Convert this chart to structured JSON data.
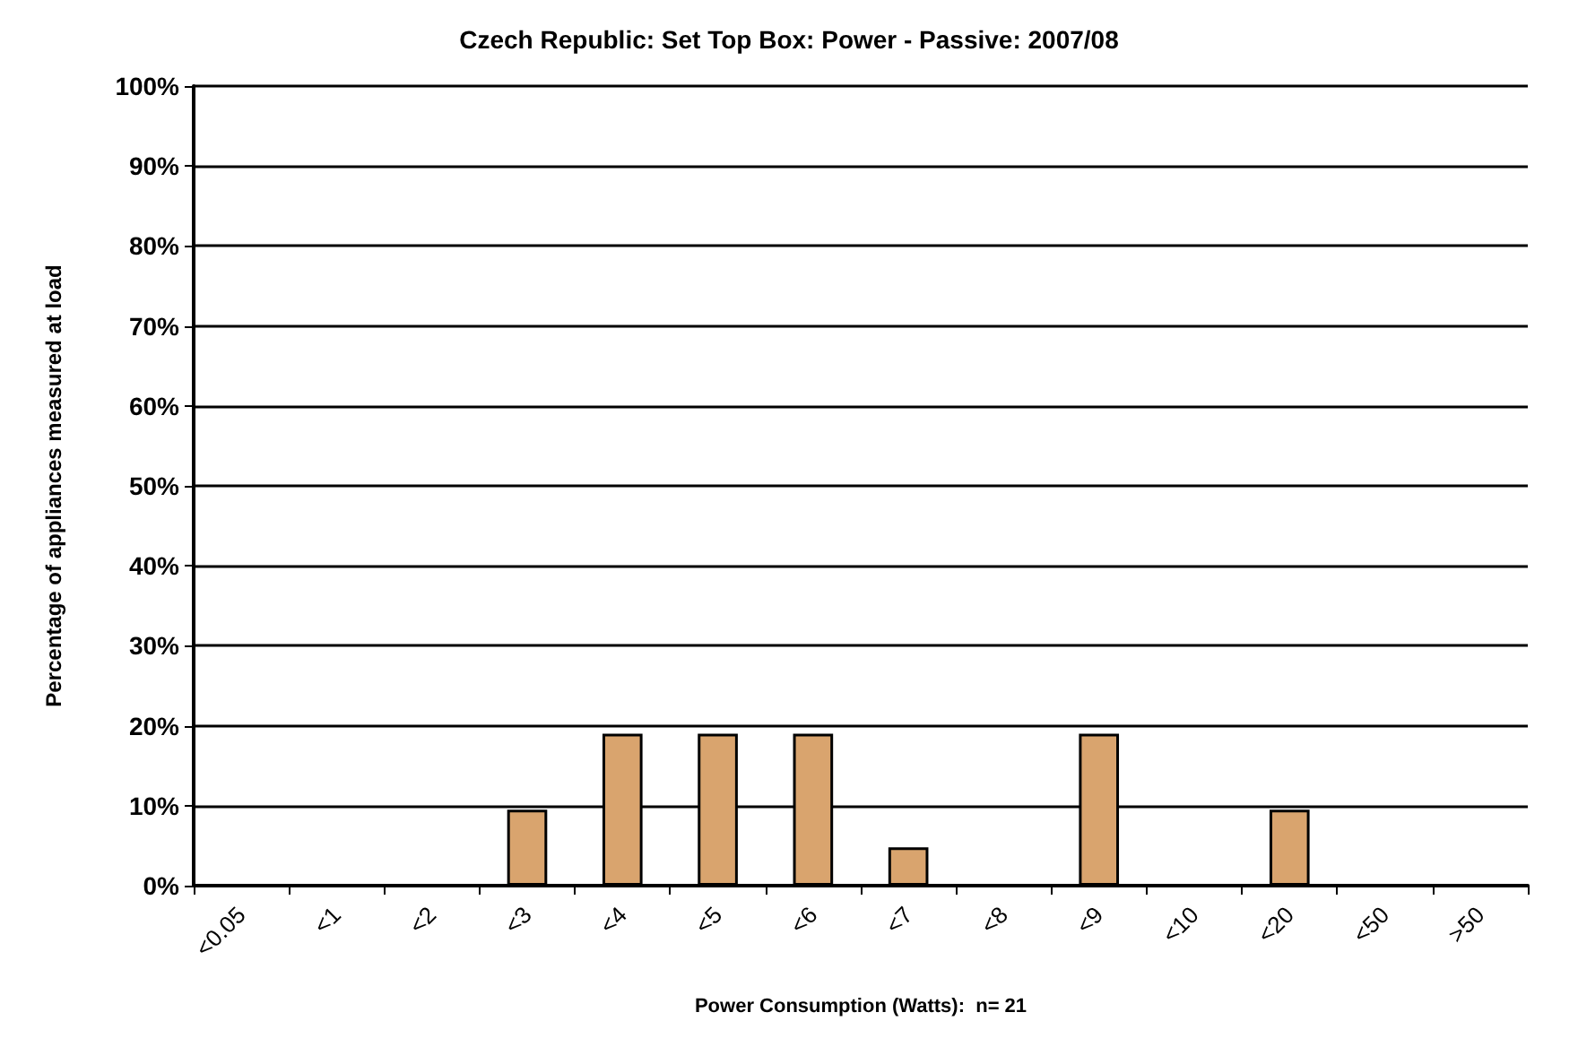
{
  "chart_data": {
    "type": "bar",
    "title": "Czech Republic: Set Top Box: Power - Passive: 2007/08",
    "xlabel": "Power Consumption (Watts):  n= 21",
    "ylabel": "Percentage of appliances measured at load",
    "categories": [
      "<0.05",
      "<1",
      "<2",
      "<3",
      "<4",
      "<5",
      "<6",
      "<7",
      "<8",
      "<9",
      "<10",
      "<20",
      "<50",
      ">50"
    ],
    "values": [
      0,
      0,
      0,
      9.5,
      19,
      19,
      19,
      4.8,
      0,
      19,
      0,
      9.5,
      0,
      0
    ],
    "color": "#d9a46e",
    "ylim": [
      0,
      100
    ],
    "yticks": [
      {
        "value": 0,
        "label": "0%"
      },
      {
        "value": 10,
        "label": "10%"
      },
      {
        "value": 20,
        "label": "20%"
      },
      {
        "value": 30,
        "label": "30%"
      },
      {
        "value": 40,
        "label": "40%"
      },
      {
        "value": 50,
        "label": "50%"
      },
      {
        "value": 60,
        "label": "60%"
      },
      {
        "value": 70,
        "label": "70%"
      },
      {
        "value": 80,
        "label": "80%"
      },
      {
        "value": 90,
        "label": "90%"
      },
      {
        "value": 100,
        "label": "100%"
      }
    ],
    "grid": "y"
  }
}
